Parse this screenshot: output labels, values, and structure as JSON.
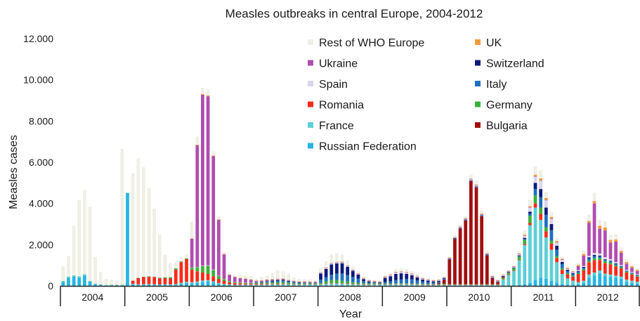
{
  "chart_data": {
    "type": "bar",
    "stacked": true,
    "title": "Measles outbreaks in central Europe, 2004-2012",
    "xlabel": "Year",
    "ylabel": "Measles cases",
    "ylim": [
      0,
      12000
    ],
    "y_ticks": [
      "0",
      "2.000",
      "4.000",
      "6.000",
      "8.000",
      "10.000",
      "12.000"
    ],
    "y_tick_values": [
      0,
      2000,
      4000,
      6000,
      8000,
      10000,
      12000
    ],
    "years": [
      "2004",
      "2005",
      "2006",
      "2007",
      "2008",
      "2009",
      "2010",
      "2011",
      "2012"
    ],
    "bars_per_year": 12,
    "legend_placement": "top-right",
    "series": [
      {
        "name": "Russian Federation",
        "color": "#25b5e3",
        "values": [
          200,
          400,
          450,
          400,
          500,
          200,
          80,
          50,
          20,
          30,
          30,
          30,
          4500,
          80,
          60,
          60,
          70,
          60,
          50,
          50,
          40,
          50,
          100,
          150,
          130,
          160,
          200,
          220,
          170,
          100,
          60,
          40,
          30,
          30,
          30,
          30,
          20,
          20,
          20,
          20,
          20,
          20,
          20,
          20,
          20,
          20,
          20,
          20,
          20,
          20,
          20,
          20,
          20,
          20,
          20,
          20,
          20,
          20,
          20,
          20,
          20,
          20,
          20,
          20,
          20,
          20,
          20,
          20,
          20,
          20,
          20,
          20,
          20,
          20,
          20,
          20,
          20,
          20,
          20,
          20,
          20,
          20,
          20,
          20,
          30,
          40,
          80,
          150,
          300,
          400,
          350,
          250,
          150,
          80,
          60,
          50,
          80,
          150,
          400,
          500,
          600,
          500,
          450,
          400,
          350,
          200,
          150,
          100
        ]
      },
      {
        "name": "France",
        "color": "#5ccfd6",
        "values": [
          30,
          40,
          50,
          50,
          50,
          30,
          20,
          10,
          10,
          10,
          10,
          10,
          0,
          20,
          20,
          20,
          20,
          20,
          20,
          30,
          30,
          40,
          50,
          50,
          50,
          50,
          60,
          60,
          50,
          40,
          30,
          30,
          20,
          30,
          30,
          30,
          40,
          40,
          50,
          60,
          50,
          60,
          50,
          40,
          40,
          50,
          50,
          50,
          60,
          80,
          100,
          100,
          90,
          80,
          60,
          50,
          40,
          40,
          50,
          50,
          40,
          50,
          60,
          60,
          60,
          50,
          40,
          40,
          30,
          30,
          30,
          30,
          20,
          20,
          20,
          20,
          20,
          20,
          20,
          20,
          20,
          20,
          300,
          500,
          700,
          1200,
          1900,
          2800,
          3500,
          2800,
          2000,
          1500,
          1000,
          500,
          300,
          200,
          100,
          100,
          150,
          150,
          150,
          100,
          100,
          100,
          100,
          100,
          100,
          100
        ]
      },
      {
        "name": "Romania",
        "color": "#ff2a1a",
        "values": [
          0,
          0,
          0,
          0,
          0,
          0,
          0,
          0,
          0,
          0,
          0,
          0,
          0,
          150,
          300,
          350,
          350,
          350,
          300,
          300,
          300,
          700,
          1000,
          1100,
          600,
          500,
          400,
          300,
          250,
          200,
          150,
          100,
          80,
          60,
          50,
          40,
          40,
          40,
          40,
          30,
          30,
          30,
          20,
          20,
          20,
          20,
          20,
          20,
          20,
          20,
          20,
          20,
          20,
          20,
          20,
          20,
          20,
          20,
          20,
          20,
          20,
          20,
          20,
          20,
          20,
          20,
          20,
          20,
          20,
          20,
          20,
          20,
          20,
          20,
          20,
          20,
          20,
          20,
          20,
          20,
          20,
          20,
          20,
          20,
          20,
          30,
          50,
          100,
          200,
          300,
          300,
          300,
          200,
          200,
          200,
          200,
          400,
          500,
          600,
          600,
          500,
          500,
          500,
          450,
          400,
          350,
          300,
          250
        ]
      },
      {
        "name": "Germany",
        "color": "#3ab03a",
        "values": [
          10,
          10,
          10,
          10,
          10,
          10,
          10,
          10,
          10,
          10,
          10,
          10,
          10,
          10,
          10,
          20,
          20,
          20,
          30,
          40,
          50,
          60,
          40,
          40,
          100,
          200,
          300,
          400,
          300,
          150,
          80,
          50,
          40,
          40,
          40,
          40,
          40,
          40,
          50,
          60,
          80,
          80,
          70,
          50,
          40,
          30,
          30,
          30,
          50,
          100,
          150,
          150,
          120,
          100,
          80,
          60,
          50,
          40,
          40,
          30,
          30,
          30,
          30,
          30,
          30,
          30,
          30,
          30,
          30,
          30,
          30,
          30,
          20,
          20,
          20,
          20,
          20,
          20,
          20,
          20,
          20,
          20,
          50,
          80,
          100,
          150,
          200,
          350,
          400,
          300,
          200,
          150,
          100,
          80,
          60,
          50,
          50,
          50,
          80,
          100,
          100,
          100,
          80,
          60,
          50,
          40,
          40,
          40
        ]
      },
      {
        "name": "Bulgaria",
        "color": "#a00f0f",
        "values": [
          0,
          0,
          0,
          0,
          0,
          0,
          0,
          0,
          0,
          0,
          0,
          0,
          0,
          0,
          0,
          0,
          0,
          0,
          0,
          0,
          0,
          0,
          0,
          0,
          0,
          0,
          0,
          0,
          0,
          0,
          0,
          0,
          0,
          0,
          0,
          0,
          0,
          0,
          0,
          0,
          0,
          0,
          0,
          0,
          0,
          0,
          0,
          0,
          0,
          0,
          0,
          0,
          0,
          0,
          0,
          0,
          0,
          0,
          0,
          0,
          0,
          0,
          0,
          0,
          0,
          0,
          0,
          0,
          0,
          0,
          50,
          200,
          1200,
          2200,
          2700,
          3100,
          5000,
          4700,
          3300,
          1400,
          300,
          100,
          50,
          20,
          0,
          0,
          0,
          0,
          0,
          0,
          0,
          0,
          0,
          0,
          0,
          0,
          0,
          0,
          0,
          0,
          0,
          0,
          0,
          0,
          0,
          0,
          0,
          0
        ]
      },
      {
        "name": "Italy",
        "color": "#1f6fbf",
        "values": [
          0,
          0,
          0,
          0,
          0,
          0,
          0,
          0,
          0,
          0,
          0,
          0,
          0,
          0,
          0,
          0,
          0,
          0,
          0,
          0,
          0,
          0,
          0,
          0,
          0,
          0,
          0,
          0,
          0,
          0,
          0,
          0,
          0,
          0,
          0,
          0,
          20,
          30,
          40,
          50,
          60,
          60,
          50,
          40,
          30,
          20,
          20,
          20,
          150,
          200,
          250,
          300,
          350,
          300,
          250,
          200,
          100,
          50,
          30,
          30,
          80,
          100,
          150,
          180,
          200,
          200,
          150,
          100,
          80,
          60,
          50,
          40,
          20,
          20,
          20,
          20,
          20,
          30,
          30,
          30,
          20,
          20,
          20,
          20,
          20,
          30,
          50,
          100,
          300,
          500,
          600,
          500,
          300,
          200,
          100,
          80,
          60,
          80,
          100,
          100,
          80,
          60,
          60,
          50,
          40,
          30,
          30,
          30
        ]
      },
      {
        "name": "Switzerland",
        "color": "#0d1a7a",
        "values": [
          0,
          0,
          0,
          0,
          0,
          0,
          0,
          0,
          0,
          0,
          0,
          0,
          0,
          0,
          0,
          0,
          0,
          0,
          0,
          0,
          0,
          0,
          0,
          0,
          0,
          0,
          0,
          0,
          0,
          0,
          0,
          0,
          0,
          0,
          0,
          0,
          20,
          20,
          30,
          40,
          40,
          40,
          30,
          20,
          20,
          20,
          20,
          20,
          300,
          400,
          500,
          500,
          500,
          400,
          300,
          200,
          100,
          50,
          30,
          20,
          200,
          250,
          300,
          300,
          250,
          200,
          150,
          100,
          80,
          60,
          40,
          30,
          20,
          20,
          20,
          20,
          20,
          20,
          20,
          20,
          20,
          20,
          20,
          20,
          20,
          30,
          50,
          100,
          300,
          400,
          350,
          300,
          200,
          100,
          60,
          40,
          30,
          40,
          50,
          50,
          40,
          30,
          30,
          30,
          20,
          20,
          20,
          20
        ]
      },
      {
        "name": "Spain",
        "color": "#d9d5ec",
        "values": [
          0,
          0,
          0,
          0,
          0,
          0,
          0,
          0,
          0,
          0,
          0,
          0,
          0,
          0,
          0,
          0,
          0,
          0,
          0,
          0,
          0,
          0,
          0,
          0,
          10,
          10,
          20,
          20,
          20,
          10,
          10,
          10,
          10,
          10,
          10,
          10,
          10,
          10,
          10,
          10,
          10,
          10,
          10,
          10,
          10,
          10,
          10,
          10,
          20,
          30,
          40,
          40,
          40,
          30,
          20,
          20,
          20,
          20,
          20,
          20,
          30,
          40,
          60,
          60,
          60,
          50,
          40,
          30,
          20,
          20,
          20,
          20,
          20,
          20,
          20,
          30,
          40,
          40,
          30,
          20,
          20,
          20,
          20,
          20,
          30,
          50,
          100,
          200,
          300,
          400,
          350,
          250,
          150,
          100,
          50,
          40,
          40,
          50,
          80,
          100,
          100,
          100,
          80,
          60,
          50,
          40,
          40,
          30
        ]
      },
      {
        "name": "Ukraine",
        "color": "#b04db0",
        "values": [
          0,
          0,
          0,
          0,
          0,
          0,
          0,
          0,
          0,
          0,
          0,
          0,
          0,
          0,
          0,
          0,
          0,
          0,
          0,
          0,
          0,
          0,
          0,
          0,
          1400,
          5900,
          8300,
          8200,
          5500,
          2700,
          1200,
          300,
          250,
          200,
          180,
          150,
          50,
          50,
          50,
          40,
          40,
          40,
          30,
          30,
          30,
          30,
          20,
          20,
          20,
          20,
          20,
          20,
          20,
          20,
          20,
          20,
          20,
          20,
          20,
          20,
          20,
          20,
          20,
          20,
          20,
          20,
          20,
          20,
          20,
          20,
          20,
          20,
          20,
          20,
          20,
          20,
          20,
          20,
          20,
          20,
          20,
          20,
          20,
          20,
          20,
          20,
          20,
          20,
          20,
          20,
          20,
          20,
          20,
          20,
          20,
          20,
          200,
          500,
          1600,
          2400,
          1200,
          1300,
          800,
          1000,
          600,
          300,
          200,
          150
        ]
      },
      {
        "name": "UK",
        "color": "#f39a3c",
        "values": [
          0,
          0,
          0,
          0,
          0,
          0,
          0,
          0,
          0,
          0,
          0,
          0,
          0,
          0,
          0,
          0,
          0,
          0,
          0,
          0,
          0,
          0,
          0,
          0,
          20,
          30,
          30,
          40,
          40,
          30,
          20,
          20,
          20,
          20,
          20,
          20,
          20,
          20,
          20,
          20,
          20,
          20,
          20,
          20,
          20,
          20,
          20,
          20,
          20,
          20,
          20,
          20,
          20,
          20,
          20,
          20,
          20,
          20,
          20,
          20,
          20,
          20,
          20,
          20,
          20,
          20,
          20,
          20,
          20,
          20,
          20,
          20,
          20,
          20,
          20,
          20,
          30,
          30,
          30,
          20,
          20,
          20,
          20,
          20,
          20,
          30,
          40,
          50,
          80,
          100,
          100,
          80,
          60,
          40,
          30,
          30,
          60,
          80,
          100,
          120,
          150,
          150,
          130,
          100,
          90,
          80,
          70,
          60
        ]
      },
      {
        "name": "Rest of WHO Europe",
        "color": "#efefe5",
        "values": [
          700,
          1000,
          2400,
          3700,
          4100,
          3600,
          1300,
          600,
          300,
          250,
          200,
          6600,
          0,
          5200,
          5800,
          5300,
          4300,
          3300,
          2100,
          1100,
          700,
          300,
          200,
          200,
          800,
          400,
          300,
          300,
          200,
          150,
          100,
          100,
          100,
          150,
          150,
          150,
          100,
          150,
          200,
          300,
          400,
          350,
          300,
          150,
          100,
          100,
          100,
          100,
          200,
          300,
          400,
          400,
          350,
          250,
          150,
          100,
          60,
          50,
          40,
          30,
          60,
          100,
          150,
          150,
          150,
          100,
          80,
          60,
          50,
          50,
          40,
          40,
          50,
          60,
          80,
          100,
          200,
          200,
          150,
          100,
          80,
          60,
          50,
          50,
          50,
          100,
          200,
          300,
          400,
          400,
          300,
          250,
          150,
          100,
          80,
          50,
          80,
          150,
          300,
          400,
          300,
          300,
          250,
          250,
          200,
          150,
          100,
          80
        ]
      }
    ]
  }
}
